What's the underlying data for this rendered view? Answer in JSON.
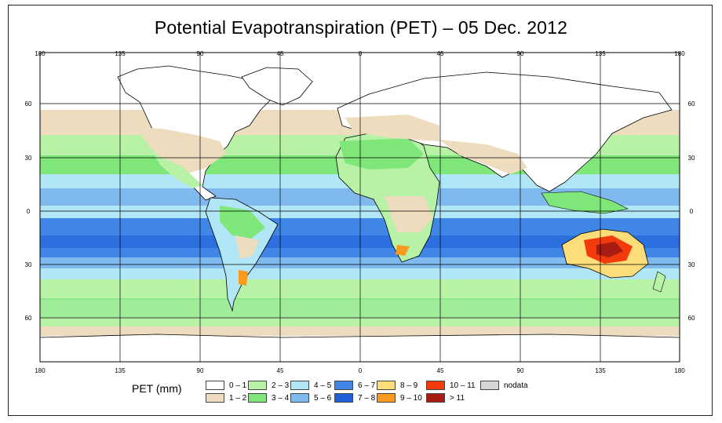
{
  "title": "Potential Evapotranspiration (PET) – 05 Dec. 2012",
  "axes": {
    "top_lon_labels": [
      "180",
      "135",
      "90",
      "45",
      "0",
      "45",
      "90",
      "135",
      "180"
    ],
    "bottom_lon_labels": [
      "180",
      "135",
      "90",
      "45",
      "0",
      "45",
      "90",
      "135",
      "180"
    ],
    "lat_labels": [
      "60",
      "30",
      "0",
      "30",
      "60"
    ]
  },
  "legend": {
    "title": "PET (mm)",
    "items": [
      {
        "label": "0 – 1",
        "color": "#ffffff"
      },
      {
        "label": "1 – 2",
        "color": "#eddcbe"
      },
      {
        "label": "2 – 3",
        "color": "#b8f2a6"
      },
      {
        "label": "3 – 4",
        "color": "#7fe67a"
      },
      {
        "label": "4 – 5",
        "color": "#b0e6f5"
      },
      {
        "label": "5 – 6",
        "color": "#7fb9ee"
      },
      {
        "label": "6 – 7",
        "color": "#3f86e6"
      },
      {
        "label": "7 – 8",
        "color": "#2060d8"
      },
      {
        "label": "8 – 9",
        "color": "#fddc7a"
      },
      {
        "label": "9 – 10",
        "color": "#fa9a1e"
      },
      {
        "label": "10 – 11",
        "color": "#f23a0a"
      },
      {
        "label": "> 11",
        "color": "#a81c14"
      },
      {
        "label": "nodata",
        "color": "#d6d6d6"
      }
    ]
  },
  "colors": {
    "frame": "#222222",
    "grid": "#000000",
    "coast": "#000000"
  }
}
